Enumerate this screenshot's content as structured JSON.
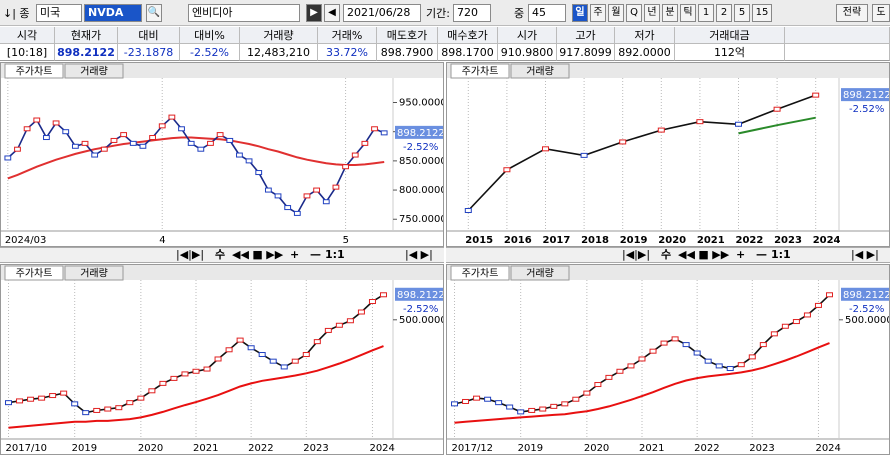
{
  "toolbar": {
    "mode": "종",
    "market": "미국",
    "symbol": "NVDA",
    "name": "엔비디아",
    "date": "2021/06/28",
    "period_label": "기간:",
    "period": "720",
    "range_label": "중",
    "range": "45",
    "buttons": [
      "일",
      "주",
      "월",
      "Q",
      "년",
      "분",
      "틱",
      "1",
      "2",
      "5",
      "15"
    ],
    "right_buttons": [
      "전략",
      "도"
    ]
  },
  "quote": {
    "headers": [
      "시각",
      "현재가",
      "대비",
      "대비%",
      "거래량",
      "거래%",
      "매도호가",
      "매수호가",
      "시가",
      "고가",
      "저가",
      "거래대금"
    ],
    "values": [
      "[10:18]",
      "898.2122",
      "-23.1878",
      "-2.52%",
      "12,483,210",
      "33.72%",
      "898.7900",
      "898.1700",
      "910.9800",
      "917.8099",
      "892.0000",
      "112억"
    ]
  },
  "scroll_controls": [
    "수",
    "+",
    "—",
    "1:1"
  ],
  "panels": [
    {
      "type": "line",
      "tabs": [
        "주가차트",
        "거래량"
      ],
      "price_label": "898.2122",
      "change_label": "-2.52%",
      "log": false,
      "ylim": [
        735,
        980
      ],
      "yticks": [
        {
          "value": 950,
          "label": "950.0000"
        },
        {
          "value": 900,
          "label": "900.0000"
        },
        {
          "value": 850,
          "label": "850.0000"
        },
        {
          "value": 800,
          "label": "800.0000"
        },
        {
          "value": 750,
          "label": "750.0000"
        }
      ],
      "categories": [
        "2024/03",
        null,
        null,
        null,
        null,
        null,
        null,
        null,
        null,
        null,
        null,
        null,
        null,
        null,
        null,
        null,
        "4",
        null,
        null,
        null,
        null,
        null,
        null,
        null,
        null,
        null,
        null,
        null,
        null,
        null,
        null,
        null,
        null,
        null,
        null,
        "5",
        null,
        null,
        null,
        null
      ],
      "series": [
        {
          "color": "#1a2a8a",
          "values": [
            855,
            870,
            905,
            920,
            890,
            915,
            900,
            875,
            880,
            860,
            870,
            885,
            895,
            880,
            875,
            890,
            910,
            925,
            905,
            880,
            870,
            880,
            895,
            885,
            860,
            850,
            830,
            800,
            790,
            770,
            760,
            790,
            800,
            780,
            805,
            840,
            860,
            880,
            905,
            898
          ]
        },
        {
          "color": "#e03030",
          "values": [
            820,
            826,
            833,
            840,
            846,
            852,
            857,
            862,
            866,
            870,
            873,
            876,
            879,
            881,
            883,
            885,
            887,
            889,
            890,
            890,
            889,
            888,
            887,
            885,
            882,
            879,
            875,
            870,
            866,
            861,
            856,
            852,
            849,
            846,
            844,
            843,
            843,
            844,
            846,
            848
          ]
        }
      ]
    },
    {
      "type": "line",
      "tabs": [
        "주가차트",
        "거래량"
      ],
      "price_label": "898.2122",
      "change_label": "-2.52%",
      "log": true,
      "ylim": [
        20,
        1200
      ],
      "yticks": [],
      "categories": [
        "2015",
        "2016",
        "2017",
        "2018",
        "2019",
        "2020",
        "2021",
        "2022",
        "2023",
        "2024"
      ],
      "series": [
        {
          "color": "#111111",
          "values": [
            33,
            106,
            193,
            160,
            235,
            330,
            420,
            390,
            600,
            898
          ]
        },
        {
          "color": "#2a8a2a",
          "values": [
            null,
            null,
            null,
            null,
            null,
            null,
            null,
            300,
            380,
            470
          ]
        }
      ]
    },
    {
      "type": "line",
      "tabs": [
        "주가차트",
        "거래량"
      ],
      "price_label": "898.2122",
      "change_label": "-2.52%",
      "log": true,
      "ylim": [
        33,
        1077
      ],
      "yticks": [
        {
          "value": 500,
          "label": "500.0000"
        }
      ],
      "categories": [
        "2017/10",
        null,
        null,
        null,
        null,
        null,
        "2019",
        null,
        null,
        null,
        null,
        null,
        "2020",
        null,
        null,
        null,
        null,
        "2021",
        null,
        null,
        null,
        null,
        "2022",
        null,
        null,
        null,
        null,
        "2023",
        null,
        null,
        null,
        null,
        null,
        "2024",
        null
      ],
      "series": [
        {
          "color": "#111111",
          "values": [
            72,
            75,
            78,
            80,
            85,
            90,
            70,
            57,
            60,
            62,
            64,
            72,
            80,
            95,
            113,
            127,
            141,
            150,
            158,
            200,
            248,
            311,
            260,
            222,
            190,
            166,
            190,
            222,
            300,
            390,
            440,
            489,
            600,
            767,
            898
          ]
        },
        {
          "color": "#e81010",
          "values": [
            40,
            41,
            42,
            43,
            44,
            45,
            46,
            46,
            47,
            47,
            48,
            49,
            51,
            54,
            58,
            63,
            68,
            73,
            79,
            86,
            95,
            105,
            113,
            120,
            125,
            130,
            136,
            143,
            152,
            165,
            180,
            198,
            220,
            245,
            270
          ]
        }
      ]
    },
    {
      "type": "line",
      "tabs": [
        "주가차트",
        "거래량"
      ],
      "price_label": "898.2122",
      "change_label": "-2.52%",
      "log": true,
      "ylim": [
        33,
        1077
      ],
      "yticks": [
        {
          "value": 500,
          "label": "500.0000"
        }
      ],
      "categories": [
        "2017/12",
        null,
        null,
        null,
        null,
        null,
        "2019",
        null,
        null,
        null,
        null,
        null,
        "2020",
        null,
        null,
        null,
        null,
        "2021",
        null,
        null,
        null,
        null,
        "2022",
        null,
        null,
        null,
        null,
        "2023",
        null,
        null,
        null,
        null,
        null,
        "2024",
        null
      ],
      "series": [
        {
          "color": "#111111",
          "values": [
            70,
            74,
            80,
            78,
            72,
            65,
            58,
            60,
            62,
            66,
            70,
            78,
            90,
            110,
            130,
            150,
            170,
            200,
            240,
            290,
            320,
            280,
            230,
            190,
            170,
            160,
            175,
            210,
            280,
            360,
            430,
            480,
            560,
            700,
            898
          ]
        },
        {
          "color": "#e81010",
          "values": [
            45,
            46,
            47,
            48,
            49,
            50,
            51,
            52,
            53,
            54,
            55,
            57,
            59,
            62,
            66,
            71,
            77,
            84,
            92,
            102,
            112,
            121,
            128,
            133,
            137,
            141,
            146,
            153,
            163,
            177,
            193,
            212,
            235,
            262,
            290
          ]
        }
      ]
    }
  ]
}
